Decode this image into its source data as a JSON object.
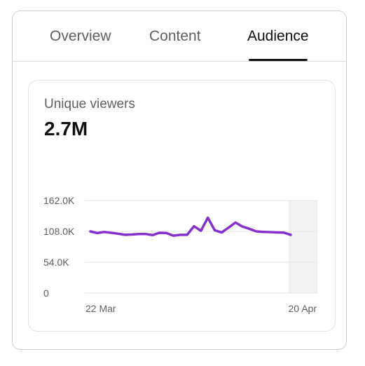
{
  "tabs": [
    {
      "label": "Overview",
      "selected": false
    },
    {
      "label": "Content",
      "selected": false
    },
    {
      "label": "Audience",
      "selected": true
    }
  ],
  "metric": {
    "label": "Unique viewers",
    "value": "2.7M"
  },
  "colors": {
    "line": "#8430ce",
    "grid": "#e5e5e5",
    "highlight": "#f2f2f2"
  },
  "chart_data": {
    "type": "line",
    "title": "",
    "xlabel": "",
    "ylabel": "",
    "ylim": [
      0,
      162000
    ],
    "y_ticks": [
      {
        "value": 162000,
        "label": "162.0K"
      },
      {
        "value": 108000,
        "label": "108.0K"
      },
      {
        "value": 54000,
        "label": "54.0K"
      },
      {
        "value": 0,
        "label": "0"
      }
    ],
    "x_ticks": [
      {
        "date": "2024-03-22",
        "label": "22 Mar"
      },
      {
        "date": "2024-04-20",
        "label": "20 Apr"
      }
    ],
    "highlight_last_day": true,
    "series": [
      {
        "x": [
          "2024-03-22",
          "2024-03-23",
          "2024-03-24",
          "2024-03-25",
          "2024-03-26",
          "2024-03-27",
          "2024-03-28",
          "2024-03-29",
          "2024-03-30",
          "2024-03-31",
          "2024-04-01",
          "2024-04-02",
          "2024-04-03",
          "2024-04-04",
          "2024-04-05",
          "2024-04-06",
          "2024-04-07",
          "2024-04-08",
          "2024-04-09",
          "2024-04-10",
          "2024-04-11",
          "2024-04-12",
          "2024-04-13",
          "2024-04-14",
          "2024-04-15",
          "2024-04-16",
          "2024-04-17",
          "2024-04-18",
          "2024-04-19",
          "2024-04-20"
        ],
        "values": [
          108000,
          105000,
          107000,
          105500,
          104000,
          102000,
          102500,
          103500,
          103500,
          101500,
          105500,
          105000,
          100500,
          102000,
          102000,
          117000,
          109000,
          132000,
          110000,
          106000,
          114500,
          123500,
          116500,
          112500,
          108000,
          107000,
          106800,
          106200,
          105800,
          102000
        ]
      }
    ]
  }
}
